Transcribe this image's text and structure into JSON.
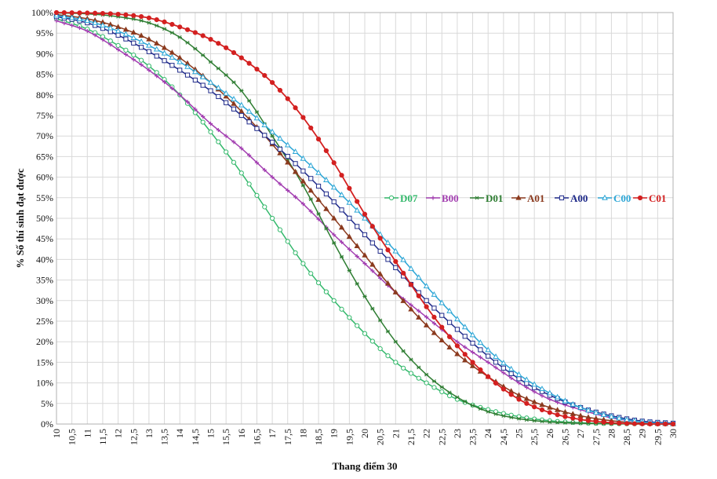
{
  "chart_data": {
    "type": "line",
    "title": "",
    "xlabel": "Thang điểm 30",
    "ylabel": "% Số thí sinh đạt được",
    "xlim": [
      10,
      30
    ],
    "ylim": [
      0,
      100
    ],
    "x_step": 0.25,
    "grid": true,
    "legend_position": "right-middle",
    "x_ticks": [
      "10",
      "10,5",
      "11",
      "11,5",
      "12",
      "12,5",
      "13",
      "13,5",
      "14",
      "14,5",
      "15",
      "15,5",
      "16",
      "16,5",
      "17",
      "17,5",
      "18",
      "18,5",
      "19",
      "19,5",
      "20",
      "20,5",
      "21",
      "21,5",
      "22",
      "22,5",
      "23",
      "23,5",
      "24",
      "24,5",
      "25",
      "25,5",
      "26",
      "26,5",
      "27",
      "27,5",
      "28",
      "28,5",
      "29",
      "29,5",
      "30"
    ],
    "y_ticks": [
      "0%",
      "5%",
      "10%",
      "15%",
      "20%",
      "25%",
      "30%",
      "35%",
      "40%",
      "45%",
      "50%",
      "55%",
      "60%",
      "65%",
      "70%",
      "75%",
      "80%",
      "85%",
      "90%",
      "95%",
      "100%"
    ],
    "series": [
      {
        "name": "D07",
        "color": "#33b86b",
        "marker": "circle-open",
        "points": [
          [
            10,
            98.5
          ],
          [
            11,
            96
          ],
          [
            12,
            92
          ],
          [
            13,
            87
          ],
          [
            14,
            80
          ],
          [
            15,
            71
          ],
          [
            16,
            61
          ],
          [
            17,
            50
          ],
          [
            18,
            39
          ],
          [
            19,
            30
          ],
          [
            20,
            22
          ],
          [
            21,
            15
          ],
          [
            22,
            10
          ],
          [
            23,
            6
          ],
          [
            24,
            3.5
          ],
          [
            25,
            1.8
          ],
          [
            26,
            0.8
          ],
          [
            27,
            0.3
          ],
          [
            28,
            0.1
          ],
          [
            29,
            0.05
          ],
          [
            30,
            0
          ]
        ]
      },
      {
        "name": "B00",
        "color": "#a23db0",
        "marker": "plus",
        "points": [
          [
            10,
            98
          ],
          [
            11,
            95.5
          ],
          [
            12,
            91
          ],
          [
            13,
            86
          ],
          [
            14,
            80
          ],
          [
            15,
            73
          ],
          [
            16,
            67
          ],
          [
            17,
            60
          ],
          [
            18,
            53.5
          ],
          [
            19,
            46
          ],
          [
            20,
            39
          ],
          [
            21,
            32
          ],
          [
            22,
            26
          ],
          [
            23,
            20
          ],
          [
            24,
            15
          ],
          [
            25,
            10
          ],
          [
            26,
            6
          ],
          [
            27,
            3.5
          ],
          [
            28,
            1.5
          ],
          [
            29,
            0.5
          ],
          [
            30,
            0.1
          ]
        ]
      },
      {
        "name": "D01",
        "color": "#2e7d32",
        "marker": "star",
        "points": [
          [
            10,
            99.9
          ],
          [
            11,
            99.7
          ],
          [
            12,
            99
          ],
          [
            13,
            97.5
          ],
          [
            14,
            94
          ],
          [
            15,
            88
          ],
          [
            16,
            81
          ],
          [
            17,
            70
          ],
          [
            18,
            58
          ],
          [
            19,
            44
          ],
          [
            20,
            31
          ],
          [
            21,
            20
          ],
          [
            22,
            12
          ],
          [
            23,
            6.5
          ],
          [
            24,
            3
          ],
          [
            25,
            1.3
          ],
          [
            26,
            0.5
          ],
          [
            27,
            0.2
          ],
          [
            28,
            0.05
          ],
          [
            29,
            0
          ],
          [
            30,
            0
          ]
        ]
      },
      {
        "name": "A01",
        "color": "#8b3a1e",
        "marker": "triangle",
        "points": [
          [
            10,
            99.5
          ],
          [
            11,
            98.5
          ],
          [
            12,
            96.5
          ],
          [
            13,
            93.5
          ],
          [
            14,
            89
          ],
          [
            15,
            83
          ],
          [
            16,
            76
          ],
          [
            17,
            68
          ],
          [
            18,
            59
          ],
          [
            19,
            50
          ],
          [
            20,
            41
          ],
          [
            21,
            32
          ],
          [
            22,
            24
          ],
          [
            23,
            17
          ],
          [
            24,
            11.5
          ],
          [
            25,
            7
          ],
          [
            26,
            4
          ],
          [
            27,
            2
          ],
          [
            28,
            0.8
          ],
          [
            29,
            0.2
          ],
          [
            30,
            0
          ]
        ]
      },
      {
        "name": "A00",
        "color": "#1f2a8a",
        "marker": "square-open",
        "points": [
          [
            10,
            99
          ],
          [
            11,
            97.5
          ],
          [
            12,
            94.5
          ],
          [
            13,
            90.5
          ],
          [
            14,
            86
          ],
          [
            15,
            81
          ],
          [
            16,
            75
          ],
          [
            17,
            68.5
          ],
          [
            18,
            61.5
          ],
          [
            19,
            54
          ],
          [
            20,
            46
          ],
          [
            21,
            38
          ],
          [
            22,
            30
          ],
          [
            23,
            23
          ],
          [
            24,
            16.5
          ],
          [
            25,
            11
          ],
          [
            26,
            7
          ],
          [
            27,
            4
          ],
          [
            28,
            2
          ],
          [
            29,
            0.7
          ],
          [
            30,
            0.2
          ]
        ]
      },
      {
        "name": "C00",
        "color": "#2ca6d6",
        "marker": "triangle-open",
        "points": [
          [
            10,
            99.3
          ],
          [
            11,
            98
          ],
          [
            12,
            95.5
          ],
          [
            13,
            92
          ],
          [
            14,
            88
          ],
          [
            15,
            83
          ],
          [
            16,
            77.5
          ],
          [
            17,
            71
          ],
          [
            18,
            64.5
          ],
          [
            19,
            57.5
          ],
          [
            20,
            50
          ],
          [
            21,
            42
          ],
          [
            22,
            33.5
          ],
          [
            23,
            25.5
          ],
          [
            24,
            18
          ],
          [
            25,
            12
          ],
          [
            26,
            7.5
          ],
          [
            27,
            4
          ],
          [
            28,
            1.8
          ],
          [
            29,
            0.5
          ],
          [
            30,
            0.1
          ]
        ]
      },
      {
        "name": "C01",
        "color": "#d32020",
        "marker": "circle",
        "points": [
          [
            10,
            100
          ],
          [
            11,
            99.9
          ],
          [
            12,
            99.6
          ],
          [
            13,
            98.7
          ],
          [
            14,
            96.5
          ],
          [
            15,
            93.5
          ],
          [
            16,
            89
          ],
          [
            17,
            83
          ],
          [
            18,
            74.5
          ],
          [
            19,
            63.5
          ],
          [
            20,
            51
          ],
          [
            21,
            39.5
          ],
          [
            22,
            28.5
          ],
          [
            23,
            19
          ],
          [
            24,
            11.5
          ],
          [
            25,
            6
          ],
          [
            26,
            2.8
          ],
          [
            27,
            1.1
          ],
          [
            28,
            0.3
          ],
          [
            29,
            0.05
          ],
          [
            30,
            0
          ]
        ]
      }
    ]
  }
}
